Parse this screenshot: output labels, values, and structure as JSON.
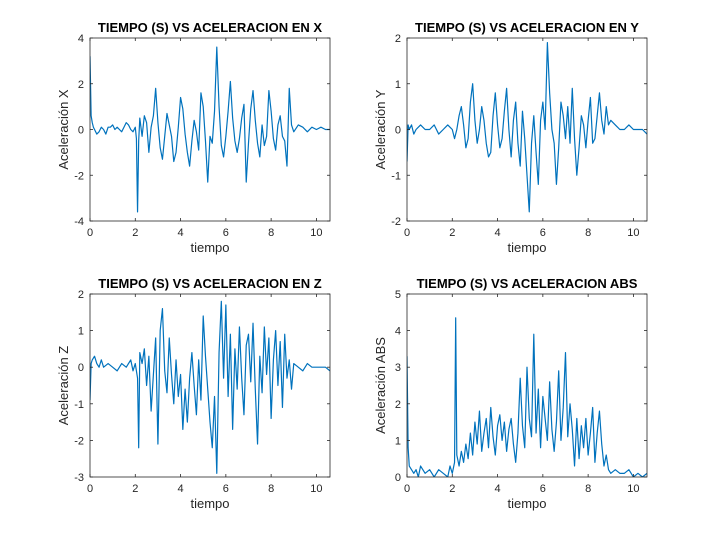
{
  "window": {
    "background": "#ffffff"
  },
  "chart_data": [
    {
      "type": "line",
      "title": "TIEMPO (S) VS ACELERACION EN X",
      "xlabel": "tiempo",
      "ylabel": "Aceleración X",
      "xlim": [
        0,
        10.6
      ],
      "ylim": [
        -4,
        4
      ],
      "xticks": [
        0,
        2,
        4,
        6,
        8,
        10
      ],
      "yticks": [
        -4,
        -2,
        0,
        2,
        4
      ],
      "grid": false,
      "color": "#0072BD",
      "series": [
        {
          "x": [
            0,
            0.05,
            0.1,
            0.15,
            0.2,
            0.3,
            0.4,
            0.5,
            0.6,
            0.7,
            0.8,
            0.9,
            1.0,
            1.1,
            1.2,
            1.3,
            1.4,
            1.5,
            1.6,
            1.7,
            1.8,
            1.9,
            2.0,
            2.05,
            2.1,
            2.15,
            2.2,
            2.3,
            2.4,
            2.5,
            2.6,
            2.7,
            2.8,
            2.9,
            3.0,
            3.1,
            3.2,
            3.3,
            3.4,
            3.5,
            3.6,
            3.7,
            3.8,
            3.9,
            4.0,
            4.1,
            4.2,
            4.3,
            4.4,
            4.5,
            4.6,
            4.7,
            4.8,
            4.9,
            5.0,
            5.1,
            5.2,
            5.3,
            5.4,
            5.5,
            5.6,
            5.7,
            5.8,
            5.9,
            6.0,
            6.1,
            6.2,
            6.3,
            6.4,
            6.5,
            6.6,
            6.7,
            6.8,
            6.9,
            7.0,
            7.1,
            7.2,
            7.3,
            7.4,
            7.5,
            7.6,
            7.7,
            7.8,
            7.9,
            8.0,
            8.1,
            8.2,
            8.3,
            8.4,
            8.5,
            8.6,
            8.7,
            8.8,
            8.9,
            9.0,
            9.2,
            9.4,
            9.6,
            9.8,
            10.0,
            10.2,
            10.4,
            10.6
          ],
          "y": [
            3.2,
            0.6,
            0.3,
            0.1,
            0.0,
            -0.2,
            -0.1,
            0.1,
            0.0,
            -0.2,
            0.1,
            0.1,
            0.2,
            0.0,
            0.1,
            0.0,
            -0.1,
            0.1,
            0.3,
            0.2,
            0.0,
            -0.1,
            0.1,
            -0.4,
            -3.6,
            -0.5,
            0.5,
            -0.3,
            0.6,
            0.3,
            -1.0,
            0.1,
            0.6,
            1.8,
            0.3,
            -0.8,
            -1.3,
            -0.3,
            0.7,
            0.2,
            -0.3,
            -1.4,
            -1.0,
            0.1,
            1.4,
            0.9,
            -0.2,
            -1.0,
            -1.6,
            -0.5,
            0.4,
            -0.1,
            -0.9,
            1.6,
            1.0,
            -0.5,
            -2.3,
            -0.3,
            -0.6,
            0.8,
            3.6,
            1.0,
            -0.7,
            -1.2,
            -0.3,
            0.8,
            2.1,
            0.5,
            -0.5,
            -1.0,
            -0.4,
            0.5,
            1.1,
            -2.3,
            -0.6,
            0.9,
            1.7,
            0.4,
            -0.6,
            -1.2,
            0.2,
            -0.7,
            -0.3,
            1.7,
            0.8,
            -0.4,
            -0.9,
            0.2,
            0.6,
            -0.3,
            -0.5,
            -1.6,
            1.8,
            0.2,
            -0.1,
            0.2,
            0.1,
            -0.1,
            0.1,
            0.0,
            0.1,
            0.0,
            0.0
          ]
        }
      ]
    },
    {
      "type": "line",
      "title": "TIEMPO (S) VS ACELERACION EN Y",
      "xlabel": "tiempo",
      "ylabel": "Aceleración Y",
      "xlim": [
        0,
        10.6
      ],
      "ylim": [
        -2,
        2
      ],
      "xticks": [
        0,
        2,
        4,
        6,
        8,
        10
      ],
      "yticks": [
        -2,
        -1,
        0,
        1,
        2
      ],
      "grid": false,
      "color": "#0072BD",
      "series": [
        {
          "x": [
            0,
            0.05,
            0.1,
            0.2,
            0.3,
            0.4,
            0.6,
            0.8,
            1.0,
            1.2,
            1.4,
            1.6,
            1.8,
            2.0,
            2.1,
            2.2,
            2.3,
            2.4,
            2.5,
            2.6,
            2.7,
            2.8,
            2.9,
            3.0,
            3.1,
            3.2,
            3.3,
            3.4,
            3.5,
            3.6,
            3.7,
            3.8,
            3.9,
            4.0,
            4.1,
            4.2,
            4.3,
            4.4,
            4.5,
            4.6,
            4.7,
            4.8,
            4.9,
            5.0,
            5.1,
            5.2,
            5.3,
            5.4,
            5.5,
            5.6,
            5.7,
            5.8,
            5.9,
            6.0,
            6.1,
            6.2,
            6.3,
            6.4,
            6.5,
            6.6,
            6.7,
            6.8,
            6.9,
            7.0,
            7.1,
            7.2,
            7.3,
            7.4,
            7.5,
            7.6,
            7.7,
            7.8,
            7.9,
            8.0,
            8.1,
            8.2,
            8.3,
            8.4,
            8.5,
            8.6,
            8.7,
            8.8,
            8.9,
            9.0,
            9.2,
            9.4,
            9.6,
            9.8,
            10.0,
            10.2,
            10.4,
            10.6
          ],
          "y": [
            -0.7,
            0.1,
            0.0,
            0.1,
            -0.1,
            0.0,
            0.1,
            0.0,
            0.0,
            0.1,
            -0.1,
            0.0,
            0.1,
            0.0,
            -0.2,
            0.0,
            0.3,
            0.5,
            0.1,
            -0.4,
            -0.2,
            0.6,
            1.0,
            0.2,
            -0.3,
            0.0,
            0.5,
            0.2,
            -0.3,
            -0.6,
            -0.5,
            0.3,
            0.8,
            0.1,
            -0.4,
            -0.2,
            0.4,
            0.9,
            0.0,
            -0.6,
            0.2,
            0.6,
            -0.3,
            -0.8,
            0.4,
            -0.2,
            -1.0,
            -1.8,
            -0.3,
            0.3,
            -0.5,
            -1.2,
            0.2,
            0.6,
            0.0,
            1.9,
            0.8,
            0.0,
            -0.3,
            -1.2,
            -0.4,
            0.6,
            0.3,
            -0.2,
            0.5,
            -0.3,
            0.9,
            -0.2,
            -1.0,
            -0.4,
            0.3,
            0.1,
            -0.4,
            0.2,
            0.7,
            -0.3,
            -0.2,
            0.3,
            0.8,
            0.2,
            -0.1,
            0.5,
            0.1,
            0.2,
            0.1,
            0.0,
            0.0,
            0.1,
            0.0,
            0.0,
            0.0,
            -0.1
          ]
        }
      ]
    },
    {
      "type": "line",
      "title": "TIEMPO (S) VS ACELERACION EN Z",
      "xlabel": "tiempo",
      "ylabel": "Aceleración Z",
      "xlim": [
        0,
        10.6
      ],
      "ylim": [
        -3,
        2
      ],
      "xticks": [
        0,
        2,
        4,
        6,
        8,
        10
      ],
      "yticks": [
        -3,
        -2,
        -1,
        0,
        1,
        2
      ],
      "grid": false,
      "color": "#0072BD",
      "series": [
        {
          "x": [
            0,
            0.05,
            0.1,
            0.2,
            0.3,
            0.4,
            0.5,
            0.6,
            0.8,
            1.0,
            1.2,
            1.4,
            1.6,
            1.8,
            1.9,
            2.0,
            2.1,
            2.15,
            2.2,
            2.3,
            2.4,
            2.5,
            2.6,
            2.7,
            2.8,
            2.9,
            3.0,
            3.1,
            3.2,
            3.3,
            3.4,
            3.5,
            3.6,
            3.7,
            3.8,
            3.9,
            4.0,
            4.1,
            4.2,
            4.3,
            4.4,
            4.5,
            4.6,
            4.7,
            4.8,
            4.9,
            5.0,
            5.1,
            5.2,
            5.3,
            5.4,
            5.5,
            5.6,
            5.7,
            5.8,
            5.9,
            6.0,
            6.1,
            6.2,
            6.3,
            6.4,
            6.5,
            6.6,
            6.7,
            6.8,
            6.9,
            7.0,
            7.1,
            7.2,
            7.3,
            7.4,
            7.5,
            7.6,
            7.7,
            7.8,
            7.9,
            8.0,
            8.1,
            8.2,
            8.3,
            8.4,
            8.5,
            8.6,
            8.7,
            8.8,
            8.9,
            9.0,
            9.2,
            9.4,
            9.6,
            9.8,
            10.0,
            10.2,
            10.4,
            10.6
          ],
          "y": [
            -0.9,
            0.1,
            0.2,
            0.3,
            0.1,
            0.0,
            0.2,
            0.0,
            0.1,
            0.0,
            -0.1,
            0.1,
            0.0,
            0.2,
            -0.1,
            0.1,
            -0.3,
            -2.2,
            0.4,
            0.1,
            0.5,
            -0.5,
            0.3,
            -1.2,
            -0.2,
            0.8,
            -2.1,
            1.0,
            1.6,
            -0.1,
            -0.7,
            0.8,
            -0.2,
            -1.0,
            0.2,
            -0.8,
            -0.2,
            -1.7,
            -0.6,
            -1.5,
            -0.3,
            0.4,
            -0.5,
            -1.3,
            0.2,
            -0.9,
            1.4,
            0.3,
            -0.6,
            -1.5,
            -2.2,
            -0.8,
            -2.9,
            0.4,
            1.8,
            -0.3,
            1.7,
            -0.8,
            0.9,
            -1.7,
            0.5,
            -0.6,
            1.1,
            -0.3,
            -1.3,
            0.6,
            0.9,
            -0.4,
            1.2,
            -0.6,
            -2.1,
            0.3,
            -0.7,
            1.1,
            -0.2,
            0.8,
            -1.4,
            0.2,
            1.0,
            -0.5,
            0.7,
            -1.1,
            0.9,
            -0.3,
            0.2,
            -0.6,
            0.1,
            0.0,
            -0.1,
            0.1,
            0.0,
            0.0,
            0.0,
            0.0,
            -0.1
          ]
        }
      ]
    },
    {
      "type": "line",
      "title": "TIEMPO (S) VS ACELERACION ABS",
      "xlabel": "tiempo",
      "ylabel": "Aceleración ABS",
      "xlim": [
        0,
        10.6
      ],
      "ylim": [
        0,
        5
      ],
      "xticks": [
        0,
        2,
        4,
        6,
        8,
        10
      ],
      "yticks": [
        0,
        1,
        2,
        3,
        4,
        5
      ],
      "grid": false,
      "color": "#0072BD",
      "series": [
        {
          "x": [
            0,
            0.05,
            0.1,
            0.2,
            0.3,
            0.4,
            0.5,
            0.6,
            0.8,
            1.0,
            1.2,
            1.4,
            1.6,
            1.8,
            1.9,
            2.0,
            2.1,
            2.15,
            2.2,
            2.3,
            2.4,
            2.5,
            2.6,
            2.7,
            2.8,
            2.9,
            3.0,
            3.1,
            3.2,
            3.3,
            3.4,
            3.5,
            3.6,
            3.7,
            3.8,
            3.9,
            4.0,
            4.1,
            4.2,
            4.3,
            4.4,
            4.5,
            4.6,
            4.7,
            4.8,
            4.9,
            5.0,
            5.1,
            5.2,
            5.3,
            5.4,
            5.5,
            5.6,
            5.7,
            5.8,
            5.9,
            6.0,
            6.1,
            6.2,
            6.3,
            6.4,
            6.5,
            6.6,
            6.7,
            6.8,
            6.9,
            7.0,
            7.1,
            7.2,
            7.3,
            7.4,
            7.5,
            7.6,
            7.7,
            7.8,
            7.9,
            8.0,
            8.1,
            8.2,
            8.3,
            8.4,
            8.5,
            8.6,
            8.7,
            8.8,
            8.9,
            9.0,
            9.2,
            9.4,
            9.6,
            9.8,
            10.0,
            10.2,
            10.4,
            10.6
          ],
          "y": [
            3.3,
            0.8,
            0.3,
            0.2,
            0.1,
            0.2,
            0.0,
            0.3,
            0.1,
            0.2,
            0.0,
            0.2,
            0.1,
            0.0,
            0.3,
            0.1,
            0.4,
            4.35,
            0.6,
            0.3,
            0.7,
            0.4,
            0.9,
            0.5,
            1.2,
            0.6,
            1.5,
            0.9,
            1.8,
            0.7,
            1.2,
            1.6,
            0.8,
            1.9,
            1.1,
            0.6,
            1.4,
            1.7,
            1.0,
            1.5,
            0.7,
            1.3,
            1.6,
            0.9,
            0.4,
            1.2,
            2.7,
            1.4,
            0.8,
            3.0,
            1.6,
            1.1,
            3.9,
            1.2,
            2.4,
            0.8,
            2.2,
            1.6,
            1.0,
            2.6,
            1.3,
            0.7,
            1.5,
            2.9,
            1.0,
            1.9,
            3.4,
            1.1,
            2.0,
            1.3,
            0.3,
            1.6,
            0.5,
            1.4,
            0.8,
            1.6,
            0.6,
            1.2,
            1.9,
            0.4,
            1.2,
            1.8,
            0.9,
            0.3,
            0.6,
            0.2,
            0.1,
            0.2,
            0.1,
            0.1,
            0.2,
            0.0,
            0.1,
            0.0,
            0.1
          ]
        }
      ]
    }
  ]
}
